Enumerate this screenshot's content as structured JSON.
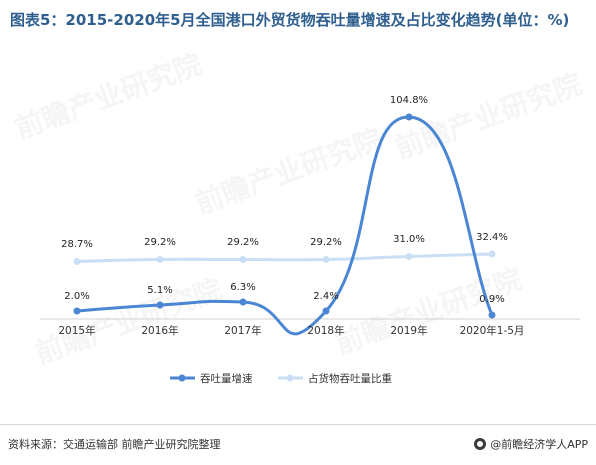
{
  "title": "图表5：2015-2020年5月全国港口外贸货物吞吐量增速及占比变化趋势(单位：%)",
  "source": "资料来源：交通运输部 前瞻产业研究院整理",
  "brand": "@前瞻经济学人APP",
  "watermark": "前瞻产业研究院",
  "colors": {
    "series1": "#4a86d4",
    "series2": "#c9dff4",
    "title": "#2f5f8f"
  },
  "chart_data": {
    "type": "line",
    "categories": [
      "2015年",
      "2016年",
      "2017年",
      "2018年",
      "2019年",
      "2020年1-5月"
    ],
    "series": [
      {
        "name": "吞吐量增速",
        "values": [
          2.0,
          5.1,
          6.3,
          2.4,
          104.8,
          0.9
        ],
        "labels": [
          "2.0%",
          "5.1%",
          "6.3%",
          "2.4%",
          "104.8%",
          "0.9%"
        ]
      },
      {
        "name": "占货物吞吐量比重",
        "values": [
          28.7,
          29.2,
          29.2,
          29.2,
          31.0,
          32.4
        ],
        "labels": [
          "28.7%",
          "29.2%",
          "29.2%",
          "29.2%",
          "31.0%",
          "32.4%"
        ]
      }
    ],
    "smooth": true,
    "grid": false,
    "legend_position": "bottom"
  }
}
